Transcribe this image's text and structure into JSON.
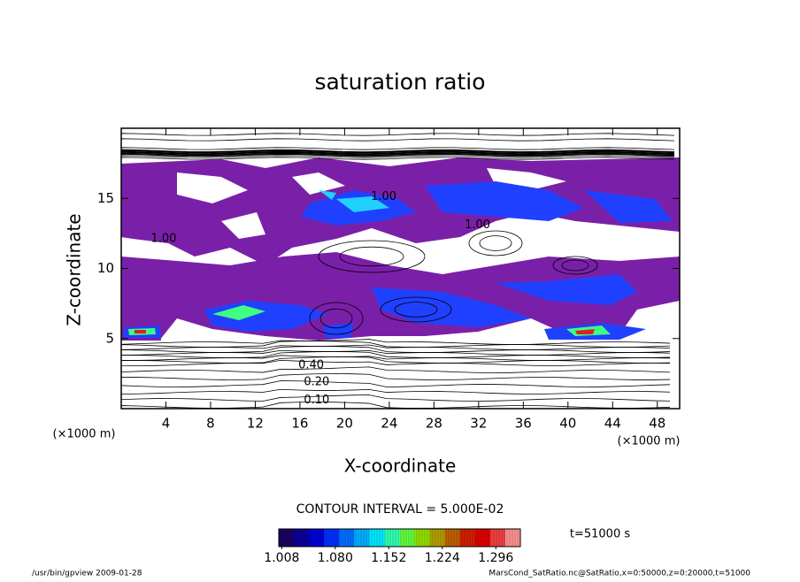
{
  "chart_data": {
    "type": "contour",
    "title": "saturation ratio",
    "x_label": "X-coordinate",
    "y_label": "Z-coordinate",
    "x_unit_label": "(×1000 m)",
    "y_unit_label": "(×1000 m)",
    "xlim": [
      0,
      50
    ],
    "ylim": [
      0,
      20
    ],
    "xticks": [
      4,
      8,
      12,
      16,
      20,
      24,
      28,
      32,
      36,
      40,
      44,
      48
    ],
    "yticks": [
      5,
      10,
      15
    ],
    "contour_labels": [
      {
        "label": "0.10",
        "x": 17.5,
        "y": 0.6
      },
      {
        "label": "0.20",
        "x": 17.5,
        "y": 1.9
      },
      {
        "label": "0.40",
        "x": 17.0,
        "y": 3.1
      },
      {
        "label": "1.00",
        "x": 3.8,
        "y": 12.1
      },
      {
        "label": "1.00",
        "x": 23.5,
        "y": 15.1
      },
      {
        "label": "1.00",
        "x": 31.9,
        "y": 13.1
      }
    ],
    "contour_interval": "CONTOUR INTERVAL = 5.000E-02",
    "colorbar": {
      "lim": [
        1.004,
        1.329
      ],
      "ticks": [
        {
          "value": 1.008,
          "label": "1.008"
        },
        {
          "value": 1.08,
          "label": "1.080"
        },
        {
          "value": 1.152,
          "label": "1.152"
        },
        {
          "value": 1.224,
          "label": "1.224"
        },
        {
          "value": 1.296,
          "label": "1.296"
        }
      ],
      "colors": [
        "#1a0060",
        "#0a0098",
        "#0000d8",
        "#0030ff",
        "#0070ff",
        "#00b0ff",
        "#00e8ff",
        "#30ffb0",
        "#60ff40",
        "#90e000",
        "#b0a000",
        "#c06000",
        "#d02000",
        "#e00000",
        "#f04040",
        "#ff9090"
      ]
    },
    "time_label": "t=51000 s",
    "footer_left": "/usr/bin/gpview  2009-01-28",
    "footer_right": "MarsCond_SatRatio.nc@SatRatio,x=0:50000,z=0:20000,t=51000"
  }
}
